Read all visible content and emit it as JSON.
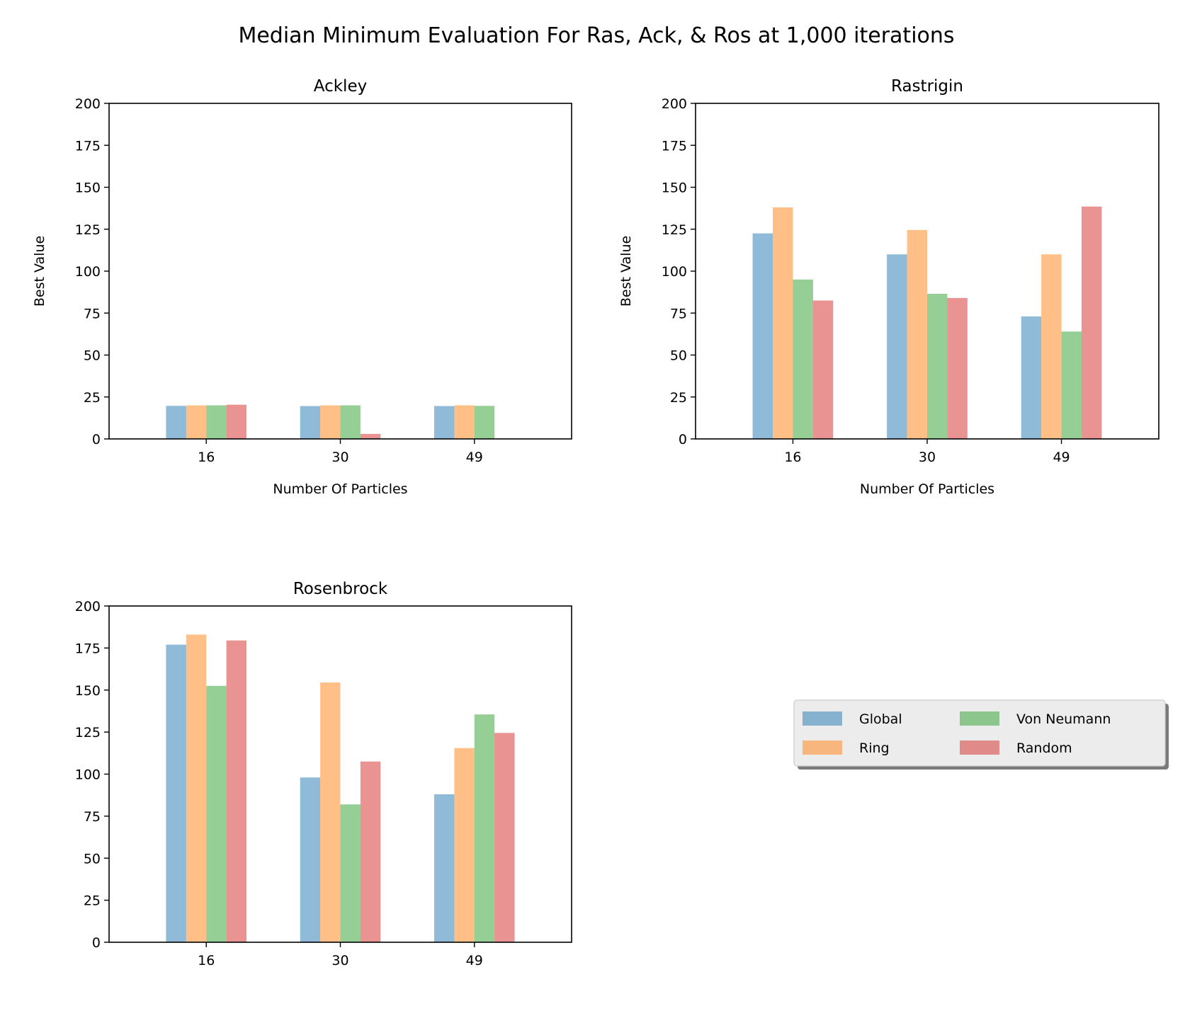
{
  "figure_title": "Median Minimum Evaluation For Ras, Ack, & Ros at 1,000 iterations",
  "legend": {
    "placement": "lower-right empty panel, two columns, shadowed box",
    "entries": [
      {
        "label": "Global",
        "color": "#1f77b4"
      },
      {
        "label": "Ring",
        "color": "#ff7f0e"
      },
      {
        "label": "Von Neumann",
        "color": "#2ca02c"
      },
      {
        "label": "Random",
        "color": "#d62728"
      }
    ]
  },
  "bar_alpha": 0.5,
  "chart_data": [
    {
      "type": "bar",
      "title": "Ackley",
      "xlabel": "Number Of Particles",
      "ylabel": "Best Value",
      "categories": [
        "16",
        "30",
        "49"
      ],
      "ylim": [
        0,
        200
      ],
      "yticks": [
        0,
        25,
        50,
        75,
        100,
        125,
        150,
        175,
        200
      ],
      "series": [
        {
          "name": "Global",
          "values": [
            19.7,
            19.6,
            19.6
          ]
        },
        {
          "name": "Ring",
          "values": [
            20.0,
            20.0,
            20.0
          ]
        },
        {
          "name": "Von Neumann",
          "values": [
            20.0,
            20.0,
            19.7
          ]
        },
        {
          "name": "Random",
          "values": [
            20.4,
            3.0,
            0
          ]
        }
      ]
    },
    {
      "type": "bar",
      "title": "Rastrigin",
      "xlabel": "Number Of Particles",
      "ylabel": "Best Value",
      "categories": [
        "16",
        "30",
        "49"
      ],
      "ylim": [
        0,
        200
      ],
      "yticks": [
        0,
        25,
        50,
        75,
        100,
        125,
        150,
        175,
        200
      ],
      "series": [
        {
          "name": "Global",
          "values": [
            122.5,
            110.0,
            73.0
          ]
        },
        {
          "name": "Ring",
          "values": [
            138.0,
            124.5,
            110.0
          ]
        },
        {
          "name": "Von Neumann",
          "values": [
            95.0,
            86.5,
            64.0
          ]
        },
        {
          "name": "Random",
          "values": [
            82.5,
            84.0,
            138.5
          ]
        }
      ]
    },
    {
      "type": "bar",
      "title": "Rosenbrock",
      "xlabel": "",
      "ylabel": "",
      "categories": [
        "16",
        "30",
        "49"
      ],
      "ylim": [
        0,
        200
      ],
      "yticks": [
        0,
        25,
        50,
        75,
        100,
        125,
        150,
        175,
        200
      ],
      "series": [
        {
          "name": "Global",
          "values": [
            177.0,
            98.0,
            88.0
          ]
        },
        {
          "name": "Ring",
          "values": [
            183.0,
            154.5,
            115.5
          ]
        },
        {
          "name": "Von Neumann",
          "values": [
            152.5,
            82.0,
            135.5
          ]
        },
        {
          "name": "Random",
          "values": [
            179.5,
            107.5,
            124.5
          ]
        }
      ]
    }
  ]
}
